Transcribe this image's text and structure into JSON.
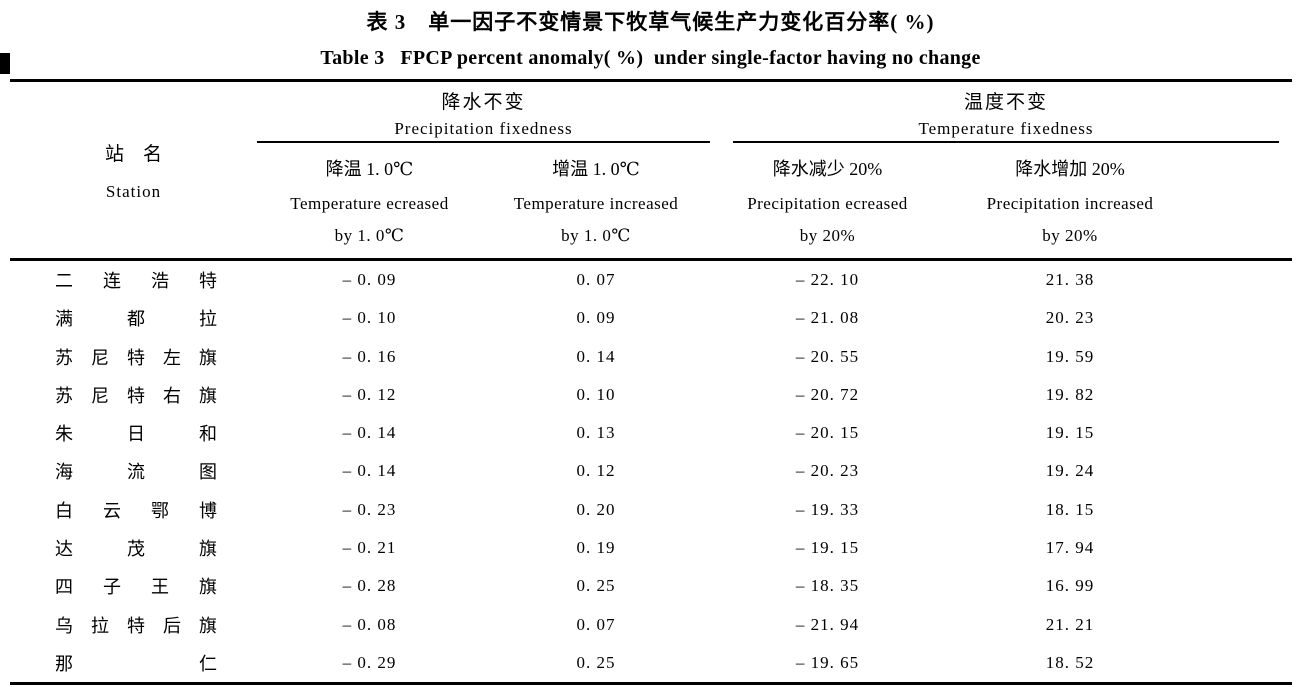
{
  "title_zh": "表 3　单一因子不变情景下牧草气候生产力变化百分率( %)",
  "title_en": "Table 3   FPCP percent anomaly( %)  under single-factor having no change",
  "header": {
    "station_zh": "站　名",
    "station_en": "Station",
    "groups": [
      {
        "zh": "降水不变",
        "en": "Precipitation fixedness"
      },
      {
        "zh": "温度不变",
        "en": "Temperature fixedness"
      }
    ],
    "columns": [
      {
        "zh": "降温 1. 0℃",
        "en": "Temperature ecreased",
        "by": "by 1. 0℃"
      },
      {
        "zh": "增温 1. 0℃",
        "en": "Temperature increased",
        "by": "by 1. 0℃"
      },
      {
        "zh": "降水减少 20%",
        "en": "Precipitation ecreased",
        "by": "by 20%"
      },
      {
        "zh": "降水增加 20%",
        "en": "Precipitation increased",
        "by": "by 20%"
      }
    ]
  },
  "table": {
    "rows": [
      {
        "station": "二连浩特",
        "values": [
          "– 0. 09",
          "0. 07",
          "– 22. 10",
          "21. 38"
        ]
      },
      {
        "station": "满都拉",
        "values": [
          "– 0. 10",
          "0. 09",
          "– 21. 08",
          "20. 23"
        ]
      },
      {
        "station": "苏尼特左旗",
        "values": [
          "– 0. 16",
          "0. 14",
          "– 20. 55",
          "19. 59"
        ]
      },
      {
        "station": "苏尼特右旗",
        "values": [
          "– 0. 12",
          "0. 10",
          "– 20. 72",
          "19. 82"
        ]
      },
      {
        "station": "朱日和",
        "values": [
          "– 0. 14",
          "0. 13",
          "– 20. 15",
          "19. 15"
        ]
      },
      {
        "station": "海流图",
        "values": [
          "– 0. 14",
          "0. 12",
          "– 20. 23",
          "19. 24"
        ]
      },
      {
        "station": "白云鄂博",
        "values": [
          "– 0. 23",
          "0. 20",
          "– 19. 33",
          "18. 15"
        ]
      },
      {
        "station": "达茂旗",
        "values": [
          "– 0. 21",
          "0. 19",
          "– 19. 15",
          "17. 94"
        ]
      },
      {
        "station": "四子王旗",
        "values": [
          "– 0. 28",
          "0. 25",
          "– 18. 35",
          "16. 99"
        ]
      },
      {
        "station": "乌拉特后旗",
        "values": [
          "– 0. 08",
          "0. 07",
          "– 21. 94",
          "21. 21"
        ]
      },
      {
        "station": "那仁",
        "values": [
          "– 0. 29",
          "0. 25",
          "– 19. 65",
          "18. 52"
        ]
      }
    ]
  },
  "colors": {
    "background": "#ffffff",
    "text": "#000000",
    "rule": "#000000"
  }
}
